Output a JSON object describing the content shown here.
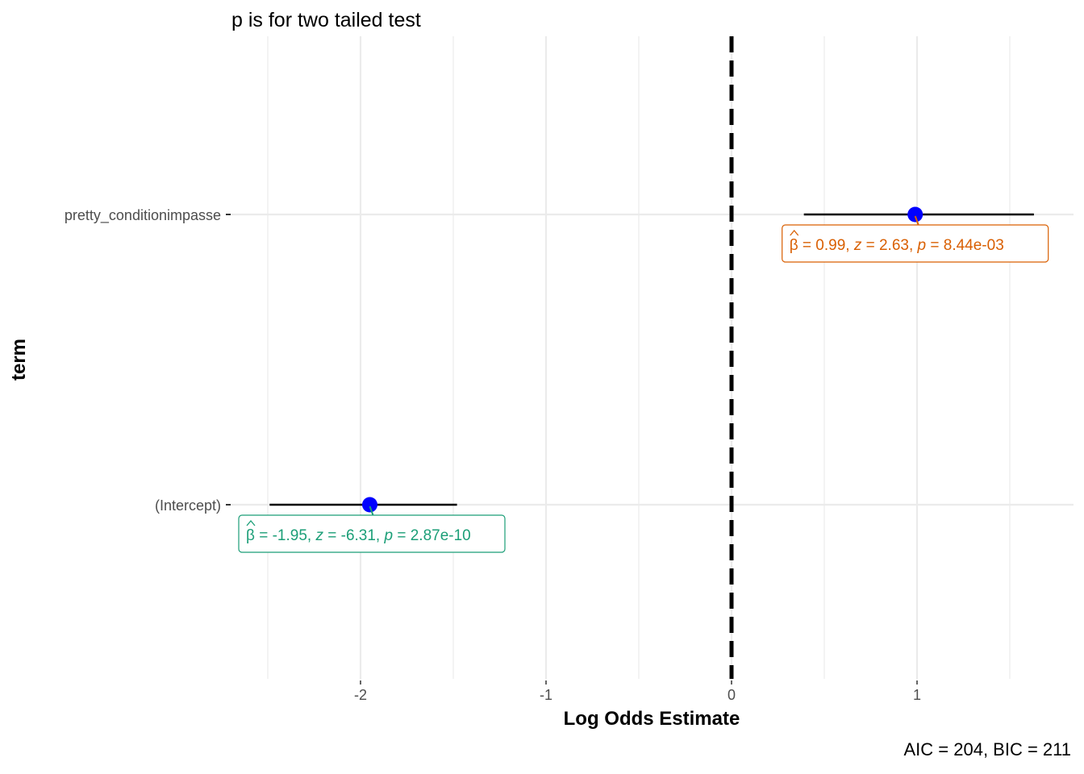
{
  "chart_data": {
    "type": "scatter",
    "subtitle": "p is for two tailed test",
    "xlabel": "Log Odds Estimate",
    "ylabel": "term",
    "caption": "AIC = 204, BIC = 211",
    "xlim": [
      -2.5,
      1.8
    ],
    "x_ticks": [
      -2,
      -1,
      0,
      1
    ],
    "x_tick_labels": [
      "-2",
      "-1",
      "0",
      "1"
    ],
    "reference_line_x": 0,
    "grid": true,
    "categories": [
      "pretty_conditionimpasse",
      "(Intercept)"
    ],
    "points": [
      {
        "term": "pretty_conditionimpasse",
        "estimate": 0.99,
        "ci_low": 0.39,
        "ci_high": 1.63,
        "label": {
          "beta": "0.99",
          "z": "2.63",
          "p": "8.44e-03"
        },
        "label_color": "#d95f02"
      },
      {
        "term": "(Intercept)",
        "estimate": -1.95,
        "ci_low": -2.49,
        "ci_high": -1.48,
        "label": {
          "beta": "-1.95",
          "z": "-6.31",
          "p": "2.87e-10"
        },
        "label_color": "#1b9e77"
      }
    ],
    "point_color": "#0000ff",
    "grid_color": "#ebebeb"
  }
}
